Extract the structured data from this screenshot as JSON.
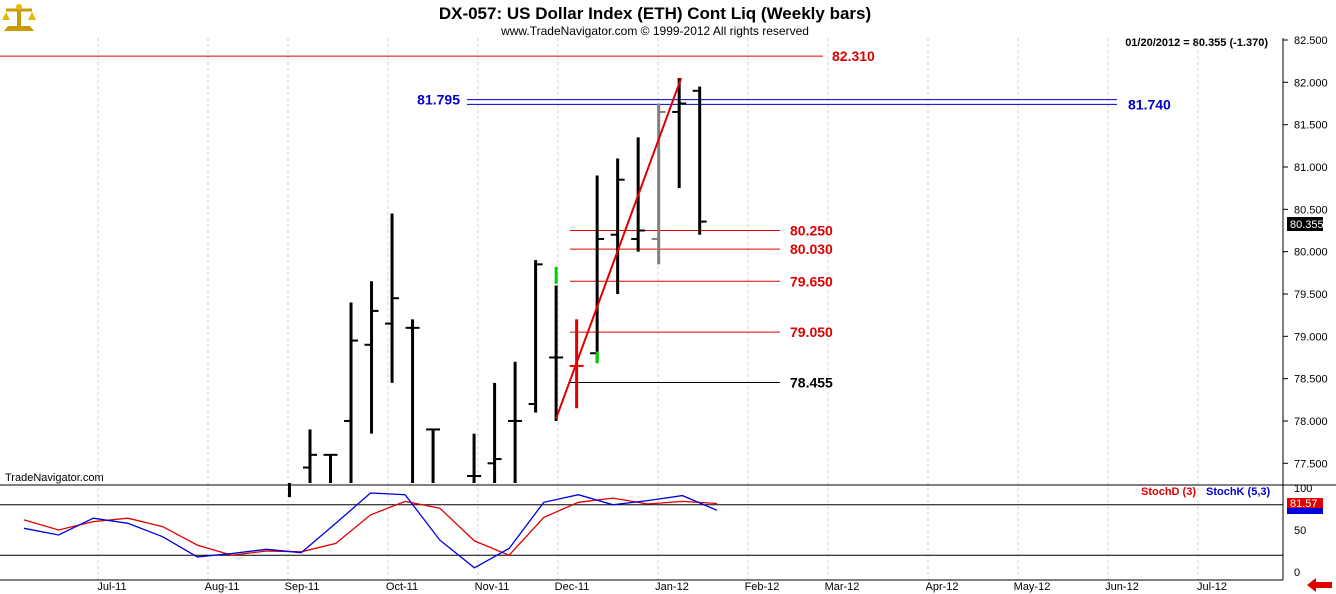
{
  "header": {
    "title": "DX-057:  US Dollar Index (ETH) Cont Liq  (Weekly bars)",
    "subtitle": "www.TradeNavigator.com © 1999-2012 All rights reserved",
    "last_quote": "01/20/2012 = 80.355 (-1.370)",
    "watermark": "TradeNavigator.com"
  },
  "colors": {
    "bar": "#000000",
    "grey_bar": "#808080",
    "level_red": "#e00000",
    "level_blue": "#0000cc",
    "trend": "#e00000",
    "stoch_d": "#e00000",
    "stoch_k": "#0000dd",
    "green": "#00cc00",
    "arrow": "#e00000"
  },
  "icons": {
    "logo": "gold-scales-icon",
    "scroll": "left-arrow-icon"
  },
  "chart_data": [
    {
      "type": "bar",
      "subtype": "ohlc",
      "title": "DX-057:  US Dollar Index (ETH) Cont Liq  (Weekly bars)",
      "ylim": [
        77.1,
        82.6
      ],
      "yticks": [
        "82.500",
        "82.000",
        "81.500",
        "81.000",
        "80.500",
        "80.000",
        "79.500",
        "79.000",
        "78.500",
        "78.000",
        "77.500"
      ],
      "xticks": [
        "Jul-11",
        "Aug-11",
        "Sep-11",
        "Oct-11",
        "Nov-11",
        "Dec-11",
        "Jan-12",
        "Feb-12",
        "Mar-12",
        "Apr-12",
        "May-12",
        "Jun-12",
        "Jul-12"
      ],
      "current_price": "80.355",
      "bars": [
        {
          "date": "2011-09-02",
          "open": 77.1,
          "high": 77.1,
          "low": 77.1,
          "close": 77.1
        },
        {
          "date": "2011-09-09",
          "open": 77.45,
          "high": 77.9,
          "low": 77.1,
          "close": 77.6
        },
        {
          "date": "2011-09-16",
          "open": 77.6,
          "high": 77.6,
          "low": 77.1,
          "close": 77.6
        },
        {
          "date": "2011-09-23",
          "open": 78.0,
          "high": 79.4,
          "low": 77.1,
          "close": 78.95
        },
        {
          "date": "2011-09-30",
          "open": 78.9,
          "high": 79.65,
          "low": 77.85,
          "close": 79.3
        },
        {
          "date": "2011-10-07",
          "open": 79.15,
          "high": 80.45,
          "low": 78.45,
          "close": 79.45
        },
        {
          "date": "2011-10-14",
          "open": 79.1,
          "high": 79.2,
          "low": 77.1,
          "close": 79.1
        },
        {
          "date": "2011-10-21",
          "open": 77.9,
          "high": 77.9,
          "low": 77.1,
          "close": 77.9
        },
        {
          "date": "2011-11-04",
          "open": 77.35,
          "high": 77.85,
          "low": 77.1,
          "close": 77.35
        },
        {
          "date": "2011-11-11",
          "open": 77.5,
          "high": 78.45,
          "low": 77.1,
          "close": 77.55
        },
        {
          "date": "2011-11-18",
          "open": 78.0,
          "high": 78.7,
          "low": 77.1,
          "close": 78.0
        },
        {
          "date": "2011-11-25",
          "open": 78.2,
          "high": 79.9,
          "low": 78.1,
          "close": 79.85
        },
        {
          "date": "2011-12-02",
          "open": 78.75,
          "high": 79.6,
          "low": 78.0,
          "close": 78.75
        },
        {
          "date": "2011-12-09",
          "open": 78.65,
          "high": 79.2,
          "low": 78.15,
          "close": 78.65
        },
        {
          "date": "2011-12-16",
          "open": 78.8,
          "high": 80.9,
          "low": 78.7,
          "close": 80.15
        },
        {
          "date": "2011-12-23",
          "open": 80.2,
          "high": 81.1,
          "low": 79.5,
          "close": 80.85
        },
        {
          "date": "2011-12-30",
          "open": 80.15,
          "high": 81.35,
          "low": 80.0,
          "close": 80.25
        },
        {
          "date": "2012-01-06",
          "open": 80.15,
          "high": 81.75,
          "low": 79.85,
          "close": 81.65
        },
        {
          "date": "2012-01-13",
          "open": 81.65,
          "high": 82.05,
          "low": 80.75,
          "close": 81.75
        },
        {
          "date": "2012-01-20",
          "open": 81.9,
          "high": 81.95,
          "low": 80.2,
          "close": 80.355
        }
      ],
      "levels": [
        {
          "label": "82.310",
          "value": 82.31,
          "color": "red"
        },
        {
          "label": "81.795",
          "value": 81.795,
          "color": "blue"
        },
        {
          "label": "81.740",
          "value": 81.74,
          "color": "blue"
        },
        {
          "label": "80.250",
          "value": 80.25,
          "color": "red"
        },
        {
          "label": "80.030",
          "value": 80.03,
          "color": "red"
        },
        {
          "label": "79.650",
          "value": 79.65,
          "color": "red"
        },
        {
          "label": "79.050",
          "value": 79.05,
          "color": "red"
        },
        {
          "label": "78.455",
          "value": 78.455,
          "color": "black"
        }
      ],
      "trendline": {
        "from": {
          "date": "2011-12-02",
          "price": 78.03
        },
        "to": {
          "date": "2012-01-13",
          "price": 82.05
        }
      }
    },
    {
      "type": "line",
      "ylim": [
        0,
        100
      ],
      "yticks": [
        "100",
        "50",
        "0"
      ],
      "reference_lines": [
        80,
        20
      ],
      "series": [
        {
          "name": "StochD (3)",
          "values": [
            62,
            50,
            60,
            64,
            54,
            32,
            20,
            25,
            24,
            34,
            68,
            84,
            76,
            37,
            20,
            65,
            83,
            88,
            81,
            84,
            81.57
          ],
          "last": "81.57"
        },
        {
          "name": "StochK (5,3)",
          "values": [
            52,
            44,
            64,
            58,
            42,
            18,
            22,
            27,
            23,
            58,
            94,
            92,
            38,
            5,
            28,
            83,
            92,
            80,
            85,
            91,
            73.51
          ],
          "last": "73.51"
        }
      ]
    }
  ]
}
